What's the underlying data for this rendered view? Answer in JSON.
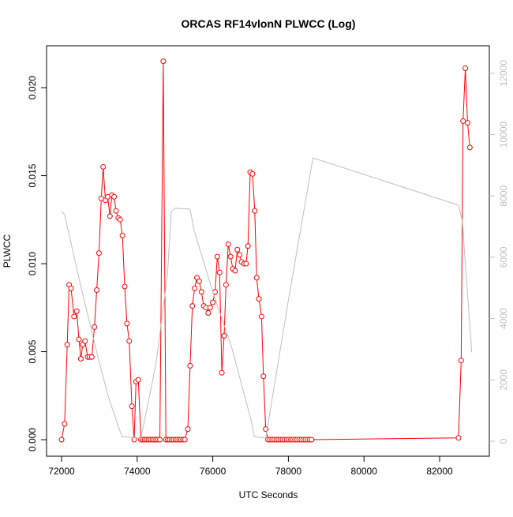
{
  "chart_data": {
    "type": "line",
    "title": "ORCAS RF14vlonN PLWCC (Log)",
    "x_label": "UTC Seconds",
    "y_label": "PLWCC",
    "xlim": [
      71603,
      83315
    ],
    "ylim": [
      -0.00094,
      0.02238
    ],
    "y2lim": [
      -489,
      12896
    ],
    "xticks": [
      72000,
      74000,
      76000,
      78000,
      80000,
      82000
    ],
    "yticks": [
      {
        "value": 0,
        "label": "0.000"
      },
      {
        "value": 0.005,
        "label": "0.005"
      },
      {
        "value": 0.01,
        "label": "0.010"
      },
      {
        "value": 0.015,
        "label": "0.015"
      },
      {
        "value": 0.02,
        "label": "0.020"
      }
    ],
    "y2ticks": [
      0,
      2000,
      4000,
      6000,
      8000,
      10000,
      12000
    ],
    "series": [
      {
        "color": "#ff0000",
        "markers": true,
        "x": [
          72000,
          72080,
          72150,
          72200,
          72250,
          72330,
          72400,
          72460,
          72510,
          72560,
          72620,
          72690,
          72740,
          72800,
          72870,
          72930,
          72990,
          73050,
          73100,
          73160,
          73220,
          73280,
          73330,
          73390,
          73440,
          73500,
          73550,
          73610,
          73670,
          73730,
          73790,
          73860,
          73920,
          73970,
          74030,
          74100,
          74150,
          74200,
          74250,
          74300,
          74350,
          74400,
          74450,
          74500,
          74550,
          74600,
          74690,
          74760,
          74810,
          74860,
          74910,
          74960,
          75010,
          75060,
          75110,
          75160,
          75210,
          75260,
          75340,
          75400,
          75460,
          75520,
          75580,
          75640,
          75700,
          75760,
          75820,
          75880,
          75930,
          76000,
          76060,
          76120,
          76180,
          76240,
          76300,
          76350,
          76410,
          76470,
          76530,
          76590,
          76650,
          76710,
          76760,
          76830,
          76880,
          76930,
          76990,
          77050,
          77110,
          77160,
          77220,
          77290,
          77340,
          77400,
          77460,
          77515,
          77570,
          77625,
          77680,
          77735,
          77790,
          77845,
          77900,
          77955,
          78010,
          78065,
          78120,
          78175,
          78230,
          78285,
          78340,
          78395,
          78450,
          78505,
          78560,
          78615,
          82500,
          82570,
          82620,
          82680,
          82740,
          82800
        ],
        "values": [
          0,
          0.0009,
          0.0054,
          0.0088,
          0.0086,
          0.007,
          0.0073,
          0.0057,
          0.0046,
          0.0054,
          0.0056,
          0.0047,
          0.0047,
          0.0047,
          0.0064,
          0.0085,
          0.0106,
          0.0137,
          0.0155,
          0.0136,
          0.0138,
          0.0127,
          0.0139,
          0.0138,
          0.013,
          0.0126,
          0.0125,
          0.0116,
          0.0087,
          0.0066,
          0.0056,
          0.0019,
          0,
          0.0033,
          0.0034,
          0,
          0,
          0,
          0,
          0,
          0,
          0,
          0,
          0,
          0,
          0,
          0.0215,
          0,
          0,
          0,
          0,
          0,
          0,
          0,
          0,
          0,
          0,
          0,
          0.0006,
          0.0042,
          0.0076,
          0.0086,
          0.0092,
          0.009,
          0.0084,
          0.0076,
          0.0075,
          0.0072,
          0.0075,
          0.0078,
          0.0084,
          0.0104,
          0.0095,
          0.0038,
          0.0059,
          0.0088,
          0.0111,
          0.0104,
          0.0097,
          0.0096,
          0.0108,
          0.0105,
          0.0101,
          0.01,
          0.01,
          0.011,
          0.0152,
          0.0151,
          0.013,
          0.0092,
          0.008,
          0.007,
          0.0036,
          0.0006,
          0,
          0,
          0,
          0,
          0,
          0,
          0,
          0,
          0,
          0,
          0,
          0,
          0,
          0,
          0,
          0,
          0,
          0,
          0,
          0,
          0,
          0,
          0.0001,
          0.0045,
          0.0181,
          0.0211,
          0.018,
          0.0166
        ]
      },
      {
        "color": "#bebebe",
        "axis": "y2",
        "markers": false,
        "x": [
          72000,
          72080,
          72500,
          73000,
          73250,
          73500,
          73600,
          74100,
          74500,
          74800,
          74900,
          75000,
          75400,
          75500,
          76000,
          76500,
          77000,
          77100,
          77400,
          78000,
          78650,
          82500,
          82600,
          82850
        ],
        "values": [
          7490,
          7390,
          5100,
          2550,
          1400,
          490,
          150,
          100,
          2550,
          5400,
          7490,
          7600,
          7570,
          6900,
          4870,
          3060,
          750,
          150,
          100,
          4600,
          9240,
          7700,
          7180,
          2900
        ]
      }
    ]
  }
}
